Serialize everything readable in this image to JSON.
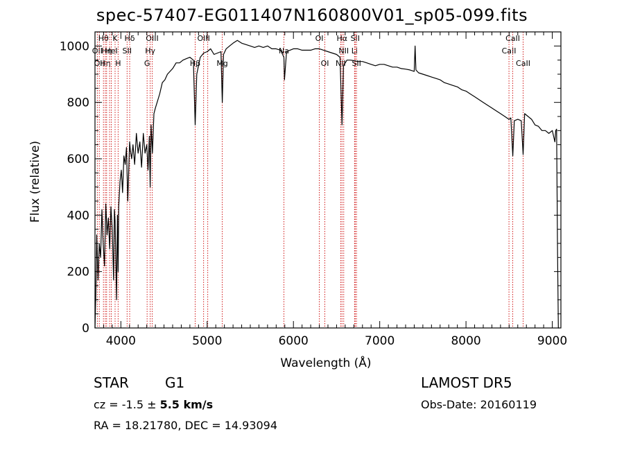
{
  "header": {
    "title": "spec-57407-EG011407N160800V01_sp05-099.fits"
  },
  "info": {
    "object_class": "STAR",
    "object_subclass": "G1",
    "survey": "LAMOST DR5",
    "cz_prefix": "cz = ",
    "cz_value": "-1.5",
    "cz_pm": " ± ",
    "cz_error": "5.5",
    "cz_unit": " km/s",
    "obs_date": "Obs-Date: 20160119",
    "ra_dec": "RA =  18.21780, DEC =  14.93094"
  },
  "chart_data": {
    "type": "line",
    "title": "spec-57407-EG011407N160800V01_sp05-099.fits",
    "xlabel": "Wavelength (Å)",
    "ylabel": "Flux (relative)",
    "xlim": [
      3700,
      9100
    ],
    "ylim": [
      0,
      1050
    ],
    "xticks": [
      4000,
      5000,
      6000,
      7000,
      8000,
      9000
    ],
    "yticks": [
      0,
      200,
      400,
      600,
      800,
      1000
    ],
    "grid": false,
    "series": [
      {
        "x": [
          3700,
          3710,
          3720,
          3735,
          3750,
          3765,
          3780,
          3795,
          3810,
          3825,
          3840,
          3855,
          3870,
          3885,
          3900,
          3915,
          3925,
          3933,
          3940,
          3950,
          3960,
          3968,
          3975,
          3990,
          4005,
          4020,
          4035,
          4050,
          4065,
          4080,
          4095,
          4102,
          4110,
          4125,
          4140,
          4160,
          4180,
          4200,
          4220,
          4240,
          4260,
          4280,
          4300,
          4315,
          4330,
          4340,
          4350,
          4365,
          4383,
          4400,
          4420,
          4450,
          4480,
          4510,
          4540,
          4570,
          4600,
          4640,
          4680,
          4720,
          4760,
          4800,
          4840,
          4861,
          4880,
          4920,
          4960,
          5000,
          5040,
          5080,
          5120,
          5160,
          5175,
          5190,
          5220,
          5260,
          5300,
          5350,
          5400,
          5450,
          5500,
          5550,
          5600,
          5650,
          5700,
          5750,
          5800,
          5850,
          5890,
          5896,
          5920,
          5960,
          6000,
          6050,
          6100,
          6150,
          6200,
          6250,
          6300,
          6350,
          6400,
          6450,
          6500,
          6540,
          6563,
          6580,
          6620,
          6660,
          6700,
          6750,
          6800,
          6850,
          6900,
          6950,
          7000,
          7050,
          7100,
          7150,
          7200,
          7250,
          7300,
          7350,
          7400,
          7410,
          7420,
          7450,
          7500,
          7550,
          7600,
          7650,
          7700,
          7750,
          7800,
          7850,
          7900,
          7950,
          8000,
          8050,
          8100,
          8150,
          8200,
          8250,
          8300,
          8350,
          8400,
          8450,
          8498,
          8520,
          8542,
          8560,
          8600,
          8640,
          8662,
          8680,
          8720,
          8760,
          8800,
          8840,
          8880,
          8920,
          8960,
          9000,
          9030,
          9040,
          9050,
          9060,
          9070,
          9080
        ],
        "y": [
          0,
          120,
          330,
          170,
          300,
          250,
          420,
          300,
          220,
          440,
          330,
          390,
          280,
          430,
          350,
          170,
          420,
          380,
          260,
          100,
          400,
          200,
          430,
          520,
          560,
          480,
          610,
          580,
          640,
          450,
          600,
          660,
          630,
          600,
          650,
          580,
          690,
          620,
          660,
          570,
          690,
          620,
          650,
          560,
          680,
          500,
          720,
          620,
          760,
          780,
          800,
          830,
          870,
          880,
          900,
          910,
          920,
          940,
          940,
          950,
          955,
          960,
          950,
          720,
          900,
          960,
          975,
          980,
          990,
          970,
          975,
          980,
          800,
          970,
          990,
          1000,
          1010,
          1020,
          1010,
          1005,
          1000,
          995,
          1000,
          995,
          1000,
          990,
          990,
          985,
          960,
          880,
          980,
          985,
          990,
          990,
          985,
          985,
          985,
          990,
          990,
          985,
          980,
          975,
          970,
          960,
          720,
          930,
          950,
          950,
          948,
          945,
          945,
          940,
          935,
          930,
          935,
          935,
          930,
          925,
          925,
          920,
          918,
          915,
          910,
          1000,
          915,
          905,
          900,
          895,
          890,
          885,
          880,
          870,
          865,
          860,
          855,
          845,
          840,
          830,
          820,
          810,
          800,
          790,
          780,
          770,
          760,
          750,
          740,
          745,
          610,
          735,
          740,
          735,
          615,
          760,
          750,
          740,
          720,
          715,
          700,
          700,
          690,
          700,
          660,
          700,
          705,
          310,
          0,
          0
        ]
      }
    ],
    "lines": [
      {
        "wl": 3727,
        "label": "OII",
        "row": 1
      },
      {
        "wl": 3750,
        "label": "OII",
        "row": 2
      },
      {
        "wl": 3798,
        "label": "Hθ",
        "row": 0
      },
      {
        "wl": 3820,
        "label": "Hη",
        "row": 2
      },
      {
        "wl": 3835,
        "label": "Hη",
        "row": 1
      },
      {
        "wl": 3869,
        "label": "",
        "row": 0
      },
      {
        "wl": 3889,
        "label": "HeI",
        "row": 1
      },
      {
        "wl": 3933,
        "label": "K",
        "row": 0
      },
      {
        "wl": 3968,
        "label": "H",
        "row": 2
      },
      {
        "wl": 4072,
        "label": "SII",
        "row": 1
      },
      {
        "wl": 4102,
        "label": "Hδ",
        "row": 0
      },
      {
        "wl": 4304,
        "label": "G",
        "row": 2
      },
      {
        "wl": 4340,
        "label": "Hγ",
        "row": 1
      },
      {
        "wl": 4363,
        "label": "OIII",
        "row": 0
      },
      {
        "wl": 4861,
        "label": "Hβ",
        "row": 2
      },
      {
        "wl": 4959,
        "label": "OIII",
        "row": 0
      },
      {
        "wl": 5007,
        "label": "",
        "row": 0
      },
      {
        "wl": 5175,
        "label": "Mg",
        "row": 2
      },
      {
        "wl": 5890,
        "label": "Na",
        "row": 1
      },
      {
        "wl": 6300,
        "label": "OI",
        "row": 0
      },
      {
        "wl": 6364,
        "label": "OI",
        "row": 2
      },
      {
        "wl": 6548,
        "label": "NII",
        "row": 2
      },
      {
        "wl": 6563,
        "label": "Hα",
        "row": 0
      },
      {
        "wl": 6583,
        "label": "NII",
        "row": 1
      },
      {
        "wl": 6708,
        "label": "Li",
        "row": 1
      },
      {
        "wl": 6716,
        "label": "SII",
        "row": 0
      },
      {
        "wl": 6731,
        "label": "SII",
        "row": 2
      },
      {
        "wl": 8498,
        "label": "CaII",
        "row": 1
      },
      {
        "wl": 8542,
        "label": "CaII",
        "row": 0
      },
      {
        "wl": 8662,
        "label": "CaII",
        "row": 2
      }
    ]
  }
}
